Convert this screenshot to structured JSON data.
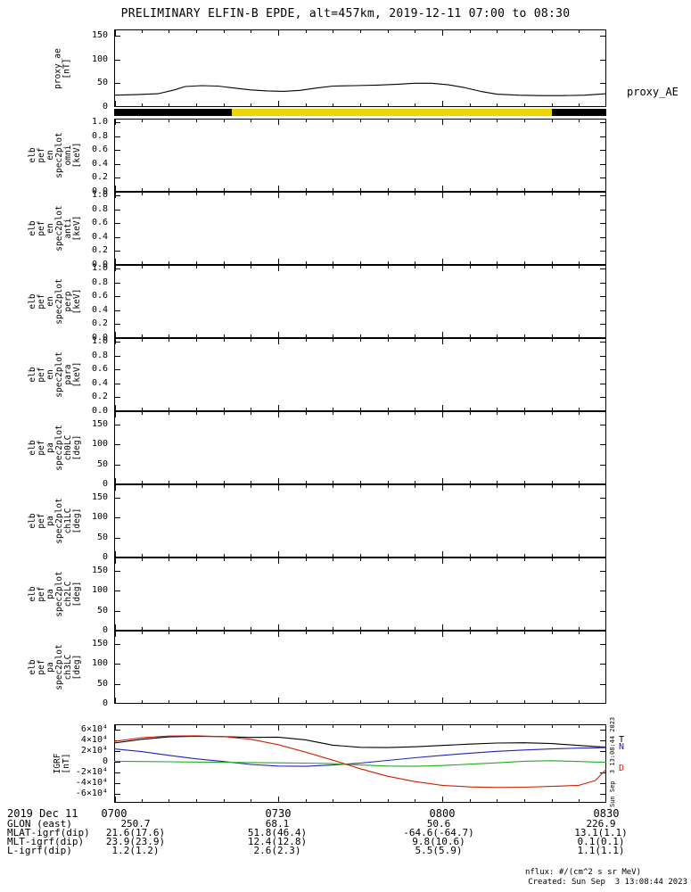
{
  "title": "PRELIMINARY ELFIN-B EPDE, alt=457km, 2019-12-11 07:00 to 08:30",
  "labels": {
    "proxy_ae_right": "proxy_AE"
  },
  "colors": {
    "axis": "#000000",
    "zone_black": "#000000",
    "zone_yellow": "#eed400",
    "proxy_line": "#000000",
    "igrf_t": "#000000",
    "igrf_n": "#2222bb",
    "igrf_e": "#22aa22",
    "igrf_d": "#cc2200"
  },
  "panels": [
    {
      "key": "proxy_ae",
      "label_lines": [
        "proxy_ae",
        "[nT]"
      ],
      "yticks": [
        "150",
        "100",
        "50",
        "0"
      ],
      "ytick_values": [
        150,
        100,
        50,
        0
      ],
      "ymin": 0,
      "ymax": 163,
      "chart": "proxy_ae"
    },
    {
      "key": "en_spec_omni",
      "label_lines": [
        "elb",
        "pef",
        "en",
        "spec2plot",
        "omni",
        "[keV]"
      ],
      "yticks": [
        "1.0",
        "0.8",
        "0.6",
        "0.4",
        "0.2",
        "0.0"
      ],
      "ytick_values": [
        1.0,
        0.8,
        0.6,
        0.4,
        0.2,
        0.0
      ],
      "ymin": 0,
      "ymax": 1.05
    },
    {
      "key": "en_spec_anti",
      "label_lines": [
        "elb",
        "pef",
        "en",
        "spec2plot",
        "anti",
        "[keV]"
      ],
      "yticks": [
        "1.0",
        "0.8",
        "0.6",
        "0.4",
        "0.2",
        "0.0"
      ],
      "ytick_values": [
        1.0,
        0.8,
        0.6,
        0.4,
        0.2,
        0.0
      ],
      "ymin": 0,
      "ymax": 1.05
    },
    {
      "key": "en_spec_perp",
      "label_lines": [
        "elb",
        "pef",
        "en",
        "spec2plot",
        "perp",
        "[keV]"
      ],
      "yticks": [
        "1.0",
        "0.8",
        "0.6",
        "0.4",
        "0.2",
        "0.0"
      ],
      "ytick_values": [
        1.0,
        0.8,
        0.6,
        0.4,
        0.2,
        0.0
      ],
      "ymin": 0,
      "ymax": 1.05
    },
    {
      "key": "en_spec_para",
      "label_lines": [
        "elb",
        "pef",
        "en",
        "spec2plot",
        "para",
        "[keV]"
      ],
      "yticks": [
        "1.0",
        "0.8",
        "0.6",
        "0.4",
        "0.2",
        "0.0"
      ],
      "ytick_values": [
        1.0,
        0.8,
        0.6,
        0.4,
        0.2,
        0.0
      ],
      "ymin": 0,
      "ymax": 1.05
    },
    {
      "key": "pa_spec_ch0lc",
      "label_lines": [
        "elb",
        "pef",
        "pa",
        "spec2plot",
        "ch0LC",
        "[deg]"
      ],
      "yticks": [
        "150",
        "100",
        "50",
        "0"
      ],
      "ytick_values": [
        150,
        100,
        50,
        0
      ],
      "ymin": 0,
      "ymax": 183
    },
    {
      "key": "pa_spec_ch1lc",
      "label_lines": [
        "elb",
        "pef",
        "pa",
        "spec2plot",
        "ch1LC",
        "[deg]"
      ],
      "yticks": [
        "150",
        "100",
        "50",
        "0"
      ],
      "ytick_values": [
        150,
        100,
        50,
        0
      ],
      "ymin": 0,
      "ymax": 183
    },
    {
      "key": "pa_spec_ch2lc",
      "label_lines": [
        "elb",
        "pef",
        "pa",
        "spec2plot",
        "ch2LC",
        "[deg]"
      ],
      "yticks": [
        "150",
        "100",
        "50",
        "0"
      ],
      "ytick_values": [
        150,
        100,
        50,
        0
      ],
      "ymin": 0,
      "ymax": 183
    },
    {
      "key": "pa_spec_ch3lc",
      "label_lines": [
        "elb",
        "pef",
        "pa",
        "spec2plot",
        "ch3LC",
        "[deg]"
      ],
      "yticks": [
        "150",
        "100",
        "50",
        "0"
      ],
      "ytick_values": [
        150,
        100,
        50,
        0
      ],
      "ymin": 0,
      "ymax": 183
    },
    {
      "key": "igrf",
      "label_lines": [
        "IGRF",
        "[nT]"
      ],
      "yticks": [
        "6×10⁴",
        "4×10⁴",
        "2×10⁴",
        "0",
        "-2×10⁴",
        "-4×10⁴",
        "-6×10⁴"
      ],
      "ytick_values": [
        60000,
        40000,
        20000,
        0,
        -20000,
        -40000,
        -60000
      ],
      "ymin": -76700,
      "ymax": 70000,
      "chart": "igrf",
      "end_labels": [
        {
          "text": "T",
          "color": "#000000",
          "series": "T"
        },
        {
          "text": "N",
          "color": "#2222bb",
          "series": "N"
        },
        {
          "text": "D",
          "color": "#cc2200",
          "series": "D"
        }
      ]
    }
  ],
  "chart_data": [
    {
      "type": "line",
      "name": "proxy_AE",
      "ylabel": "proxy_ae [nT]",
      "ylim": [
        0,
        163
      ],
      "yticks": [
        0,
        50,
        100,
        150
      ],
      "x_minutes_from_0700": [
        0,
        4,
        8,
        11,
        13,
        16,
        19,
        22,
        25,
        28,
        31,
        34,
        37,
        40,
        44,
        48,
        52,
        55,
        58,
        61,
        64,
        67,
        70,
        74,
        78,
        82,
        86,
        90
      ],
      "values": [
        25,
        26,
        28,
        36,
        43,
        45,
        44,
        40,
        36,
        34,
        33,
        35,
        40,
        44,
        45,
        46,
        48,
        50,
        50,
        47,
        41,
        33,
        27,
        25,
        24,
        24,
        25,
        28
      ],
      "color": "#000000"
    },
    {
      "type": "line",
      "name": "IGRF",
      "ylabel": "IGRF [nT]",
      "ylim": [
        -76700,
        70000
      ],
      "yticks": [
        -60000,
        -40000,
        -20000,
        0,
        20000,
        40000,
        60000
      ],
      "x_minutes_from_0700": [
        0,
        5,
        10,
        15,
        20,
        25,
        30,
        35,
        40,
        45,
        50,
        55,
        60,
        65,
        70,
        75,
        80,
        85,
        88,
        90
      ],
      "series": [
        {
          "name": "T",
          "color": "#000000",
          "values": [
            35000,
            42000,
            46500,
            47500,
            47000,
            45500,
            46000,
            41000,
            31000,
            27000,
            26500,
            28000,
            30500,
            33000,
            35000,
            35500,
            34000,
            30500,
            28500,
            27500
          ]
        },
        {
          "name": "N",
          "color": "#2222bb",
          "values": [
            24000,
            19000,
            12000,
            5500,
            500,
            -5000,
            -8000,
            -8500,
            -6000,
            -2500,
            2500,
            7500,
            12000,
            16000,
            19500,
            22000,
            24000,
            25500,
            26000,
            26500
          ]
        },
        {
          "name": "E",
          "color": "#22aa22",
          "values": [
            1000,
            500,
            0,
            -500,
            -1000,
            -1500,
            -2000,
            -2500,
            -3500,
            -6000,
            -8000,
            -8500,
            -7000,
            -4500,
            -2000,
            1000,
            2000,
            500,
            -500,
            -1000
          ]
        },
        {
          "name": "D",
          "color": "#cc2200",
          "values": [
            38000,
            45000,
            48000,
            48500,
            47000,
            42000,
            32000,
            18000,
            3000,
            -13000,
            -27000,
            -37000,
            -44000,
            -47000,
            -48000,
            -47500,
            -46000,
            -44000,
            -35000,
            -14000
          ]
        }
      ]
    }
  ],
  "bar_segments": [
    {
      "start_min": 0,
      "end_min": 21.5,
      "color": "#000000",
      "name": "black-zone"
    },
    {
      "start_min": 21.5,
      "end_min": 80,
      "color": "#eed400",
      "name": "yellow-zone"
    },
    {
      "start_min": 80,
      "end_min": 90,
      "color": "#000000",
      "name": "black-zone"
    }
  ],
  "xaxis": {
    "date_label": "2019 Dec 11",
    "time_labels": [
      "0700",
      "0730",
      "0800",
      "0830"
    ]
  },
  "annotations": {
    "rows": [
      {
        "label": "GLON (east)",
        "values": [
          "250.7",
          "68.1",
          "50.6",
          "226.9"
        ]
      },
      {
        "label": "MLAT-igrf(dip)",
        "values": [
          "21.6(17.6)",
          "51.8(46.4)",
          "-64.6(-64.7)",
          "13.1(1.1)"
        ]
      },
      {
        "label": "MLT-igrf(dip)",
        "values": [
          "23.9(23.9)",
          "12.4(12.8)",
          "9.8(10.6)",
          "0.1(0.1)"
        ]
      },
      {
        "label": "L-igrf(dip)",
        "values": [
          "1.2(1.2)",
          "2.6(2.3)",
          "5.5(5.9)",
          "1.1(1.1)"
        ]
      }
    ]
  },
  "footer": {
    "units_note": "nflux: #/(cm^2 s sr MeV)",
    "created": "Created: Sun Sep  3 13:08:44 2023",
    "side_timestamp": "Sun Sep  3 13:08:44 2023"
  }
}
